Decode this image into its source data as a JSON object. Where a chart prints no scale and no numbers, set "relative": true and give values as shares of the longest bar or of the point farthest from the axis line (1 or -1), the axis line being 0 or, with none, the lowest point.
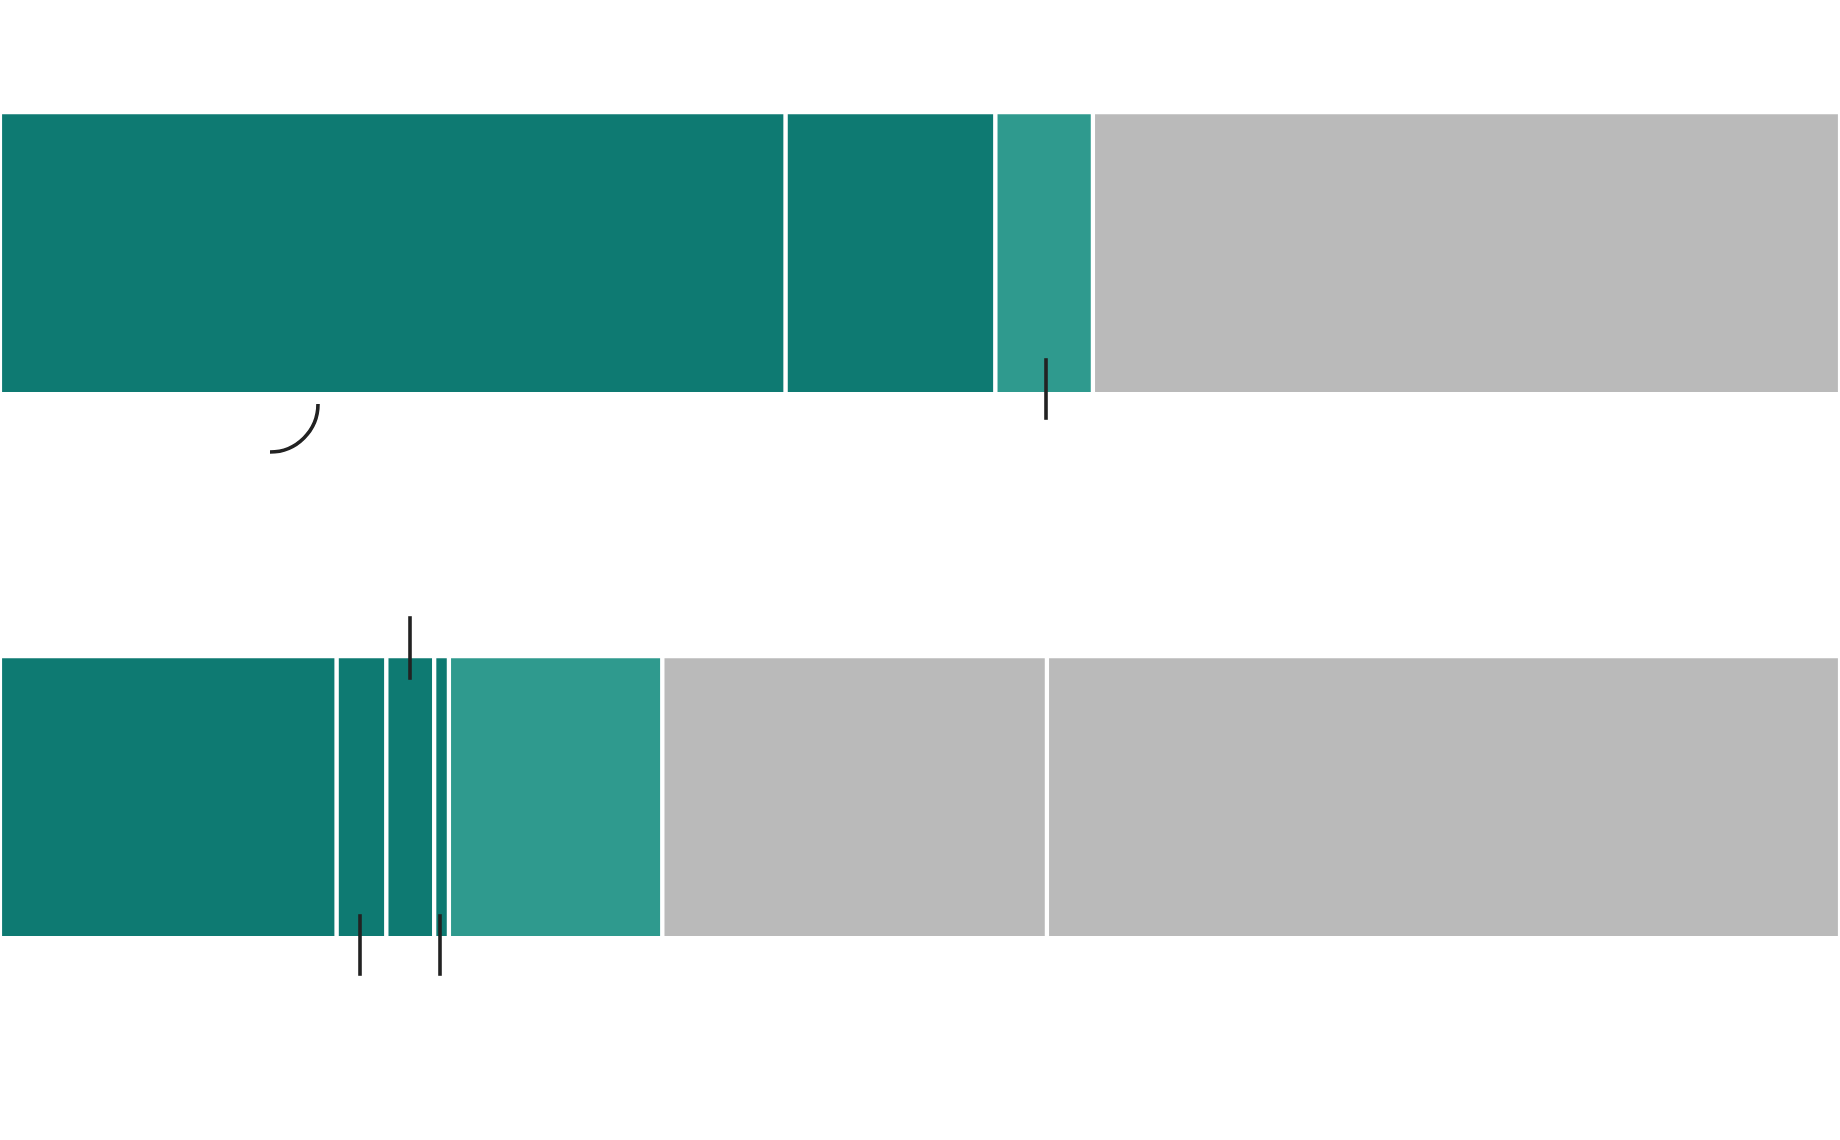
{
  "chart_data": {
    "type": "bar",
    "orientation": "horizontal",
    "stacked": true,
    "relative": true,
    "categories": [
      null,
      null
    ],
    "series": [
      {
        "color": "#0e7a72",
        "values": [
          0.427,
          0.183
        ]
      },
      {
        "color": "#0e7a72",
        "values": [
          0.114,
          0.027
        ]
      },
      {
        "color": "#0e7a72",
        "values": [
          null,
          0.026
        ]
      },
      {
        "color": "#0e7a72",
        "values": [
          null,
          0.008
        ]
      },
      {
        "color": "#2f9a8e",
        "values": [
          0.053,
          0.116
        ]
      },
      {
        "color": "#bababa",
        "values": [
          0.406,
          0.209
        ]
      },
      {
        "color": "#bababa",
        "values": [
          null,
          0.431
        ]
      }
    ]
  }
}
